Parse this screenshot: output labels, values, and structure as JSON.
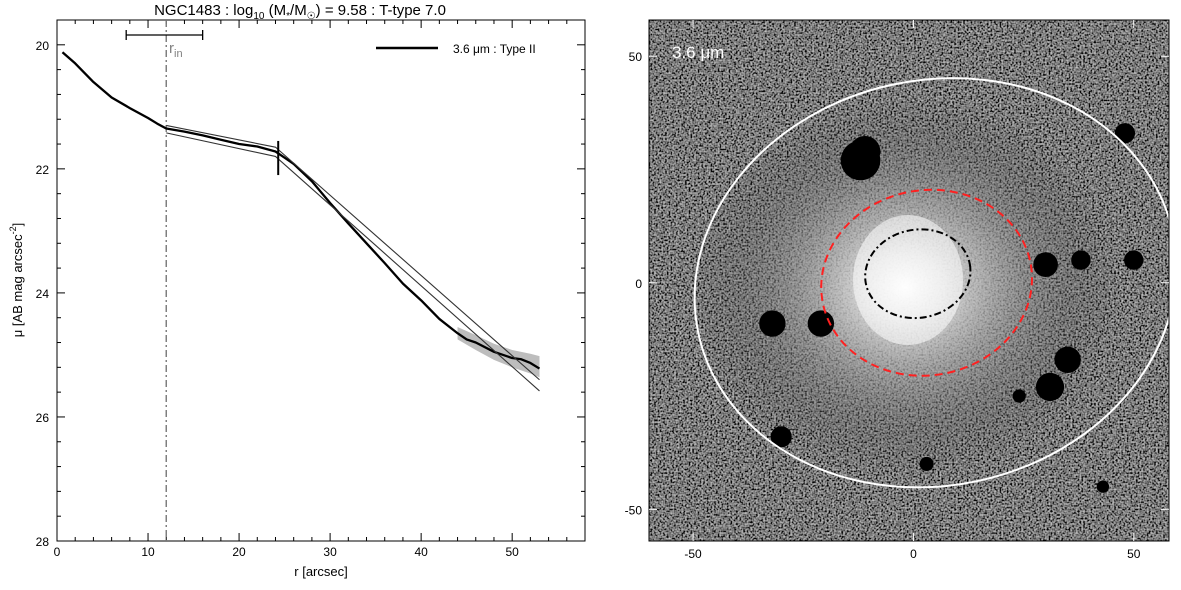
{
  "chart_data": [
    {
      "type": "line",
      "title_parts": {
        "name": "NGC1483",
        "log": "log",
        "log_sub": "10",
        "mass_ratio": "(M",
        "mass_star": "*",
        "mass_sun": "/M",
        "sun_sym": "☉",
        "close": ")",
        "value": "= 9.58",
        "ttype": "T-type 7.0"
      },
      "xlabel": "r [arcsec]",
      "ylabel": "μ [AB mag arcsec",
      "ylabel_sup": "-2",
      "ylabel_close": "]",
      "xlim": [
        0,
        58
      ],
      "ylim": [
        28,
        19.6
      ],
      "y_inverted": true,
      "xticks": [
        0,
        10,
        20,
        30,
        40,
        50
      ],
      "yticks": [
        20,
        22,
        24,
        26,
        28
      ],
      "legend_label": "3.6 μm : Type II",
      "legend_position": "top-right",
      "r_in_label": "r",
      "r_in_sub": "in",
      "r_in": 12.0,
      "r_in_errorbar": [
        7.6,
        16.0
      ],
      "break_radius": 24.3,
      "break_mu_range": [
        21.55,
        22.1
      ],
      "series": [
        {
          "name": "3.6 μm : Type II",
          "x": [
            0.6,
            2,
            4,
            6,
            8,
            10,
            11,
            12,
            14,
            16,
            18,
            20,
            22,
            24,
            25,
            26,
            28,
            30,
            32,
            34,
            36,
            38,
            40,
            42,
            44,
            45,
            46,
            48,
            50,
            51,
            52,
            53
          ],
          "y": [
            20.12,
            20.3,
            20.6,
            20.85,
            21.02,
            21.18,
            21.27,
            21.35,
            21.4,
            21.46,
            21.53,
            21.6,
            21.64,
            21.72,
            21.82,
            21.92,
            22.2,
            22.55,
            22.88,
            23.2,
            23.52,
            23.85,
            24.12,
            24.42,
            24.65,
            24.75,
            24.8,
            24.95,
            25.05,
            25.07,
            25.13,
            25.22
          ]
        },
        {
          "name": "",
          "x": [
            12,
            24,
            53
          ],
          "y": [
            21.3,
            21.65,
            25.4
          ]
        },
        {
          "name": "",
          "x": [
            12,
            24,
            53
          ],
          "y": [
            21.42,
            21.8,
            25.58
          ]
        }
      ],
      "uncertainty_band_x": [
        44,
        46,
        48,
        50,
        52,
        53
      ],
      "uncertainty_band_upper": [
        24.55,
        24.68,
        24.82,
        24.92,
        24.98,
        25.02
      ],
      "uncertainty_band_lower": [
        24.75,
        24.92,
        25.08,
        25.2,
        25.3,
        25.36
      ]
    },
    {
      "type": "heatmap",
      "image_label": "3.6 μm",
      "xlim": [
        -60,
        58
      ],
      "ylim": [
        -57,
        58
      ],
      "xticks": [
        -50,
        0,
        50
      ],
      "yticks": [
        -50,
        0,
        50
      ],
      "ellipses": [
        {
          "name": "outer-aperture",
          "color": "#ffffff",
          "style": "solid",
          "cx": 5,
          "cy": 0,
          "rx": 55,
          "ry": 46,
          "angle_deg": -12
        },
        {
          "name": "break-radius",
          "color": "#ff2020",
          "style": "dashed",
          "cx": 3,
          "cy": 0,
          "rx": 24,
          "ry": 21,
          "angle_deg": -10
        },
        {
          "name": "inner-radius",
          "color": "#000000",
          "style": "dashdot",
          "cx": 1,
          "cy": 2,
          "rx": 12,
          "ry": 10,
          "angle_deg": -10
        }
      ],
      "masked_sources": [
        {
          "x": -12,
          "y": 27,
          "r": 4.5
        },
        {
          "x": -11,
          "y": 29,
          "r": 3.5
        },
        {
          "x": -32,
          "y": -9,
          "r": 3
        },
        {
          "x": -21,
          "y": -9,
          "r": 3
        },
        {
          "x": 30,
          "y": 4,
          "r": 2.8
        },
        {
          "x": 38,
          "y": 5,
          "r": 2.2
        },
        {
          "x": 50,
          "y": 5,
          "r": 2.2
        },
        {
          "x": 48,
          "y": 33,
          "r": 2.3
        },
        {
          "x": 35,
          "y": -17,
          "r": 3
        },
        {
          "x": 31,
          "y": -23,
          "r": 3.2
        },
        {
          "x": 24,
          "y": -25,
          "r": 1.5
        },
        {
          "x": -30,
          "y": -34,
          "r": 2.4
        },
        {
          "x": 3,
          "y": -40,
          "r": 1.6
        },
        {
          "x": 43,
          "y": -45,
          "r": 1.4
        }
      ]
    }
  ]
}
